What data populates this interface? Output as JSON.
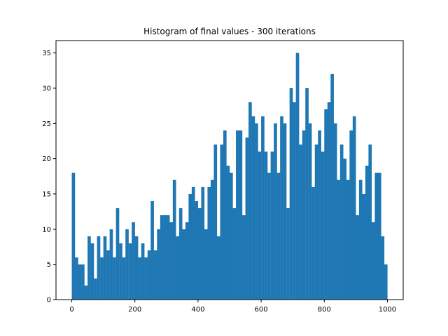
{
  "chart_data": {
    "type": "bar",
    "title": "Histogram of final values - 300 iterations",
    "xlabel": "",
    "ylabel": "",
    "bin_start": 0,
    "bin_width": 10,
    "xlim": [
      -50,
      1050
    ],
    "ylim": [
      0,
      36.75
    ],
    "xticks": [
      0,
      200,
      400,
      600,
      800,
      1000
    ],
    "yticks": [
      0,
      5,
      10,
      15,
      20,
      25,
      30,
      35
    ],
    "grid": false,
    "legend": "none",
    "bar_color": "#1f77b4",
    "values": [
      18,
      6,
      5,
      5,
      2,
      9,
      8,
      3,
      9,
      6,
      9,
      7,
      10,
      6,
      13,
      8,
      6,
      10,
      8,
      11,
      9,
      6,
      8,
      6,
      7,
      14,
      7,
      10,
      12,
      12,
      12,
      11,
      17,
      9,
      13,
      10,
      11,
      15,
      16,
      14,
      13,
      16,
      10,
      16,
      17,
      22,
      9,
      22,
      24,
      19,
      18,
      13,
      24,
      24,
      12,
      23,
      28,
      26,
      25,
      21,
      26,
      21,
      18,
      21,
      25,
      18,
      26,
      25,
      13,
      30,
      28,
      35,
      22,
      24,
      30,
      25,
      16,
      22,
      24,
      21,
      27,
      28,
      32,
      25,
      17,
      22,
      20,
      17,
      24,
      26,
      12,
      17,
      15,
      19,
      22,
      11,
      18,
      18,
      9,
      5
    ]
  }
}
